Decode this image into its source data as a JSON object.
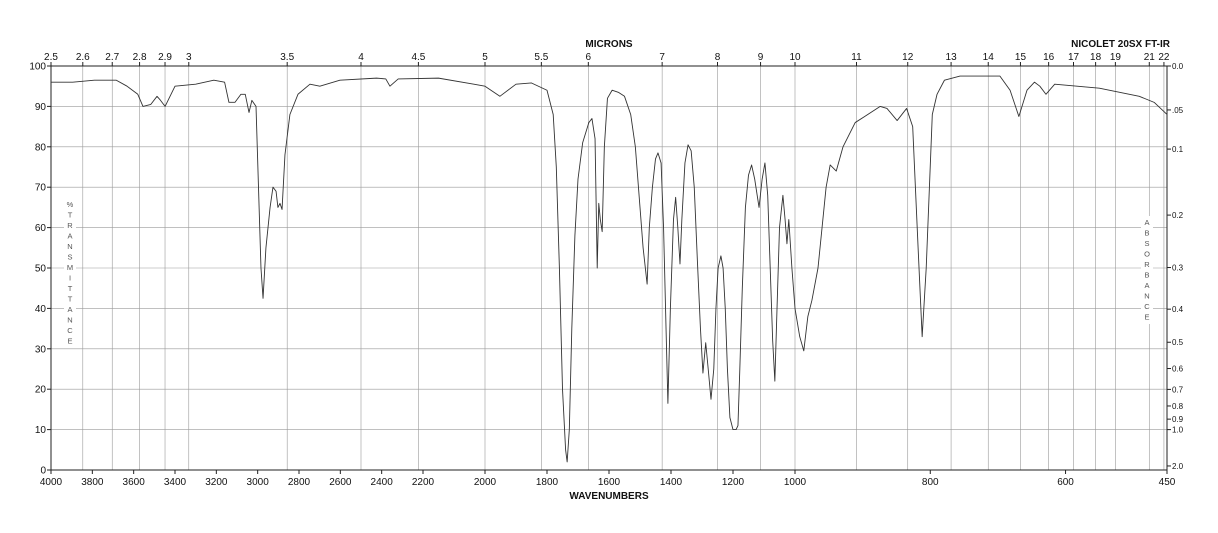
{
  "chart_data": {
    "type": "line",
    "title": "NICOLET 20SX FT-IR",
    "top_axis_label": "MICRONS",
    "x_label": "WAVENUMBERS",
    "y_label": "%TRANSMITTANCE",
    "y2_label": "ABSORBANCE",
    "color": "#333333",
    "xlim": [
      4000,
      450
    ],
    "xbreaks": [
      2200,
      1000
    ],
    "xticks": [
      4000,
      3800,
      3600,
      3400,
      3200,
      3000,
      2800,
      2600,
      2400,
      2200,
      2000,
      1800,
      1600,
      1400,
      1200,
      1000,
      800,
      600,
      450
    ],
    "micron_ticks": [
      2.5,
      2.6,
      2.7,
      2.8,
      2.9,
      3,
      3.5,
      4,
      4.5,
      5,
      5.5,
      6,
      7,
      8,
      9,
      10,
      11,
      12,
      13,
      14,
      15,
      16,
      17,
      18,
      19,
      21,
      22
    ],
    "ylim": [
      0,
      100
    ],
    "yticks": [
      0,
      10,
      20,
      30,
      40,
      50,
      60,
      70,
      80,
      90,
      100
    ],
    "y2scale": "absorbance",
    "y2ticks": [
      {
        "value": 0,
        "label": "0.0"
      },
      {
        "value": 0.05,
        "label": ".05"
      },
      0.1,
      0.2,
      0.3,
      0.4,
      0.5,
      0.6,
      0.7,
      0.8,
      0.9,
      {
        "value": 1,
        "label": "1.0"
      },
      {
        "value": 2,
        "label": "2.0"
      }
    ],
    "grid": true,
    "x": [
      4000,
      3895,
      3790,
      3685,
      3632,
      3580,
      3555,
      3517,
      3487,
      3470,
      3448,
      3400,
      3300,
      3212,
      3160,
      3139,
      3110,
      3081,
      3060,
      3042,
      3028,
      3008,
      2999,
      2984,
      2974,
      2960,
      2940,
      2926,
      2911,
      2902,
      2892,
      2882,
      2868,
      2844,
      2805,
      2747,
      2699,
      2602,
      2425,
      2380,
      2360,
      2320,
      2150,
      2036,
      2000,
      1952,
      1900,
      1850,
      1800,
      1780,
      1770,
      1760,
      1750,
      1740,
      1735,
      1728,
      1720,
      1710,
      1700,
      1685,
      1665,
      1655,
      1645,
      1638,
      1633,
      1628,
      1622,
      1615,
      1605,
      1590,
      1570,
      1550,
      1530,
      1515,
      1500,
      1490,
      1477,
      1470,
      1460,
      1450,
      1442,
      1432,
      1424,
      1416,
      1410,
      1402,
      1392,
      1385,
      1378,
      1371,
      1365,
      1355,
      1345,
      1335,
      1325,
      1315,
      1305,
      1297,
      1288,
      1280,
      1271,
      1262,
      1255,
      1248,
      1239,
      1232,
      1225,
      1218,
      1210,
      1200,
      1190,
      1184,
      1178,
      1170,
      1160,
      1150,
      1140,
      1130,
      1116,
      1106,
      1097,
      1088,
      1080,
      1072,
      1065,
      1058,
      1050,
      1039,
      1032,
      1026,
      1020,
      1010,
      1000,
      993,
      987,
      981,
      975,
      966,
      954,
      948,
      939,
      929,
      911,
      897,
      874,
      864,
      849,
      835,
      826,
      818,
      812,
      806,
      797,
      790,
      779,
      756,
      697,
      682,
      669,
      657,
      646,
      638,
      629,
      616,
      550,
      491,
      469,
      450
    ],
    "values": [
      96,
      96,
      96.5,
      96.5,
      95,
      93,
      90,
      90.5,
      92.5,
      91.5,
      90,
      95,
      95.5,
      96.5,
      96,
      91,
      91,
      93,
      93,
      88.5,
      91.5,
      90,
      75,
      50,
      42.5,
      55,
      65,
      70,
      69,
      65,
      66,
      64.5,
      78,
      88,
      93,
      95.5,
      95,
      96.5,
      97,
      96.8,
      95,
      96.8,
      97,
      95.5,
      95,
      92.5,
      95.5,
      95.8,
      94,
      88,
      75,
      50,
      20,
      5,
      2,
      10,
      35,
      58,
      72,
      81,
      86,
      87,
      82,
      50,
      66,
      62,
      59,
      80,
      92,
      94,
      93.5,
      92.5,
      88,
      80,
      65,
      55,
      46,
      60,
      70,
      77,
      78.5,
      76,
      60,
      35,
      16.5,
      40,
      62,
      67.5,
      60,
      51,
      62,
      76,
      80.5,
      79,
      70,
      52,
      35,
      24,
      31.5,
      25,
      17.5,
      25,
      40,
      50,
      53,
      50,
      40,
      25,
      13,
      10,
      10,
      11,
      25,
      45,
      65,
      73,
      75.5,
      72,
      65,
      72,
      76,
      68,
      50,
      32,
      22,
      40,
      60,
      68,
      62,
      56,
      62,
      50,
      40,
      33,
      29.5,
      38,
      42,
      50,
      70,
      75.5,
      74,
      80,
      86,
      87.5,
      90,
      89.5,
      86.5,
      89.5,
      85,
      55,
      33,
      50,
      88,
      93,
      96.5,
      97.5,
      97.5,
      94,
      87.5,
      94,
      96,
      95,
      93,
      95.5,
      94.5,
      92.5,
      91,
      88
    ]
  }
}
